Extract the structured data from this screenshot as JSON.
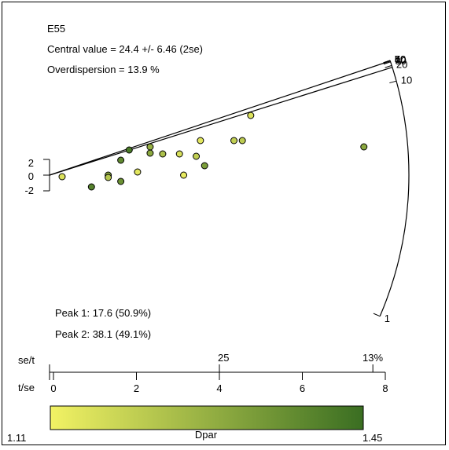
{
  "chart_data": {
    "type": "scatter",
    "plot_kind": "radial plot",
    "title": "E55",
    "central_value": "Central value = 24.4 +/- 6.46 (2se)",
    "overdispersion": "Overdispersion =  13.9 %",
    "peaks": [
      "Peak 1: 17.6 (50.9%)",
      "Peak 2: 38.1 (49.1%)"
    ],
    "z_axis": {
      "ticks": [
        1,
        10,
        20,
        30,
        40,
        50,
        60,
        70
      ],
      "min": 1,
      "max": 70
    },
    "standardized_axis": {
      "ticks": [
        "2",
        "0",
        "-2"
      ]
    },
    "x_axis_tse": {
      "label": "t/se",
      "ticks": [
        0,
        2,
        4,
        6,
        8
      ],
      "range": [
        0,
        8
      ]
    },
    "x_axis_set": {
      "label": "se/t",
      "ticks": [
        "25",
        "13%"
      ]
    },
    "reference_lines": [
      {
        "name": "Peak 1",
        "value": 17.6
      },
      {
        "name": "Peak 2",
        "value": 38.1
      }
    ],
    "colorbar": {
      "label": "Dpar",
      "min": "1.11",
      "max": "1.45",
      "color_low": "#f2f264",
      "color_high": "#3a6e22"
    },
    "points": [
      {
        "x": 0.3,
        "y": -0.2,
        "dpar": 1.15
      },
      {
        "x": 1.0,
        "y": -1.5,
        "dpar": 1.4
      },
      {
        "x": 1.4,
        "y": 0.0,
        "dpar": 1.3
      },
      {
        "x": 1.4,
        "y": -0.3,
        "dpar": 1.22
      },
      {
        "x": 1.7,
        "y": 1.9,
        "dpar": 1.38
      },
      {
        "x": 1.7,
        "y": -0.8,
        "dpar": 1.36
      },
      {
        "x": 1.9,
        "y": 3.2,
        "dpar": 1.42
      },
      {
        "x": 2.1,
        "y": 0.4,
        "dpar": 1.14
      },
      {
        "x": 2.4,
        "y": 3.6,
        "dpar": 1.28
      },
      {
        "x": 2.4,
        "y": 2.8,
        "dpar": 1.3
      },
      {
        "x": 2.7,
        "y": 2.7,
        "dpar": 1.24
      },
      {
        "x": 3.1,
        "y": 2.7,
        "dpar": 1.16
      },
      {
        "x": 3.2,
        "y": 0.0,
        "dpar": 1.13
      },
      {
        "x": 3.5,
        "y": 2.4,
        "dpar": 1.2
      },
      {
        "x": 3.6,
        "y": 4.4,
        "dpar": 1.14
      },
      {
        "x": 3.7,
        "y": 1.2,
        "dpar": 1.33
      },
      {
        "x": 4.4,
        "y": 4.4,
        "dpar": 1.2
      },
      {
        "x": 4.6,
        "y": 4.4,
        "dpar": 1.21
      },
      {
        "x": 4.8,
        "y": 7.6,
        "dpar": 1.15
      },
      {
        "x": 7.5,
        "y": 3.6,
        "dpar": 1.3
      }
    ]
  }
}
